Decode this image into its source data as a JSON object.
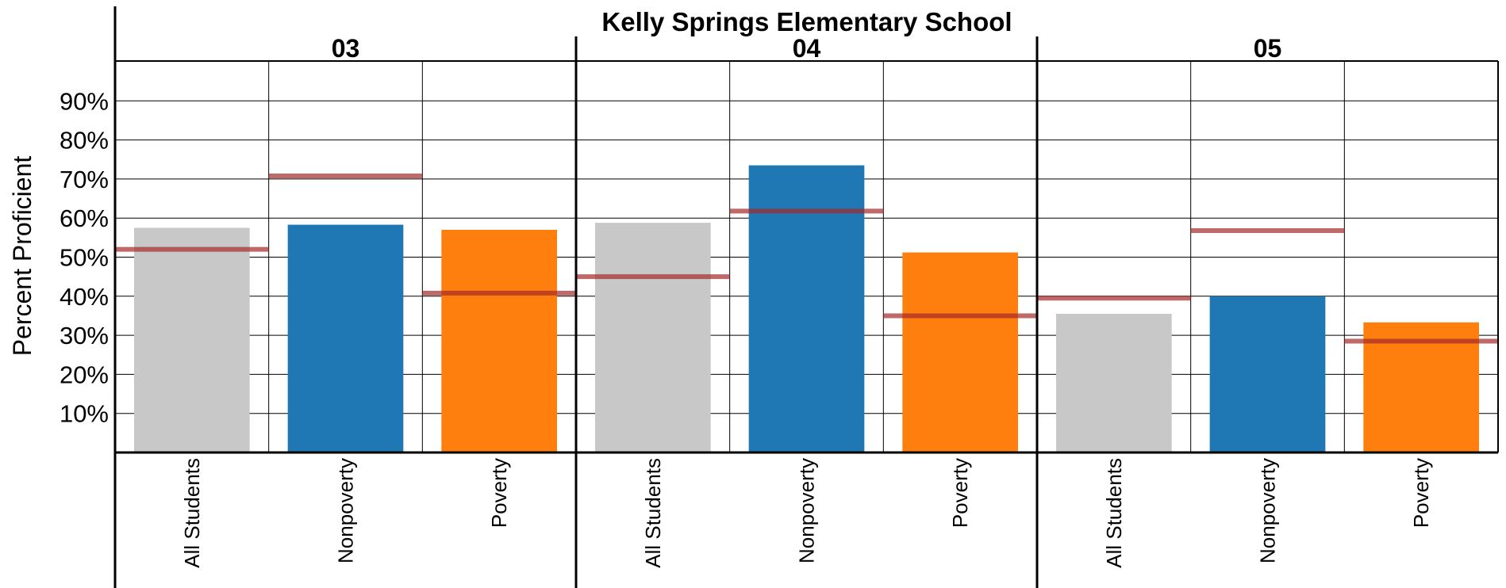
{
  "chart_data": {
    "type": "bar",
    "title": "Kelly Springs Elementary School",
    "ylabel": "Percent Proficient",
    "xlabel": "",
    "ylim": [
      0,
      100
    ],
    "y_tick_labels": [
      "10%",
      "20%",
      "30%",
      "40%",
      "50%",
      "60%",
      "70%",
      "80%",
      "90%"
    ],
    "y_tick_values": [
      10,
      20,
      30,
      40,
      50,
      60,
      70,
      80,
      90
    ],
    "grid": true,
    "categories": [
      "All Students",
      "Nonpoverty",
      "Poverty"
    ],
    "colors": {
      "All Students": "#c8c8c8",
      "Nonpoverty": "#1f77b4",
      "Poverty": "#ff7f0e",
      "reference_line": "#a52a2a"
    },
    "groups": [
      {
        "label": "03",
        "values": [
          57.5,
          58.3,
          57.0
        ],
        "reference": [
          52.0,
          70.8,
          40.8
        ]
      },
      {
        "label": "04",
        "values": [
          58.8,
          73.5,
          51.2
        ],
        "reference": [
          45.0,
          61.8,
          35.0
        ]
      },
      {
        "label": "05",
        "values": [
          35.5,
          40.0,
          33.3
        ],
        "reference": [
          39.5,
          56.8,
          28.5
        ]
      }
    ]
  }
}
